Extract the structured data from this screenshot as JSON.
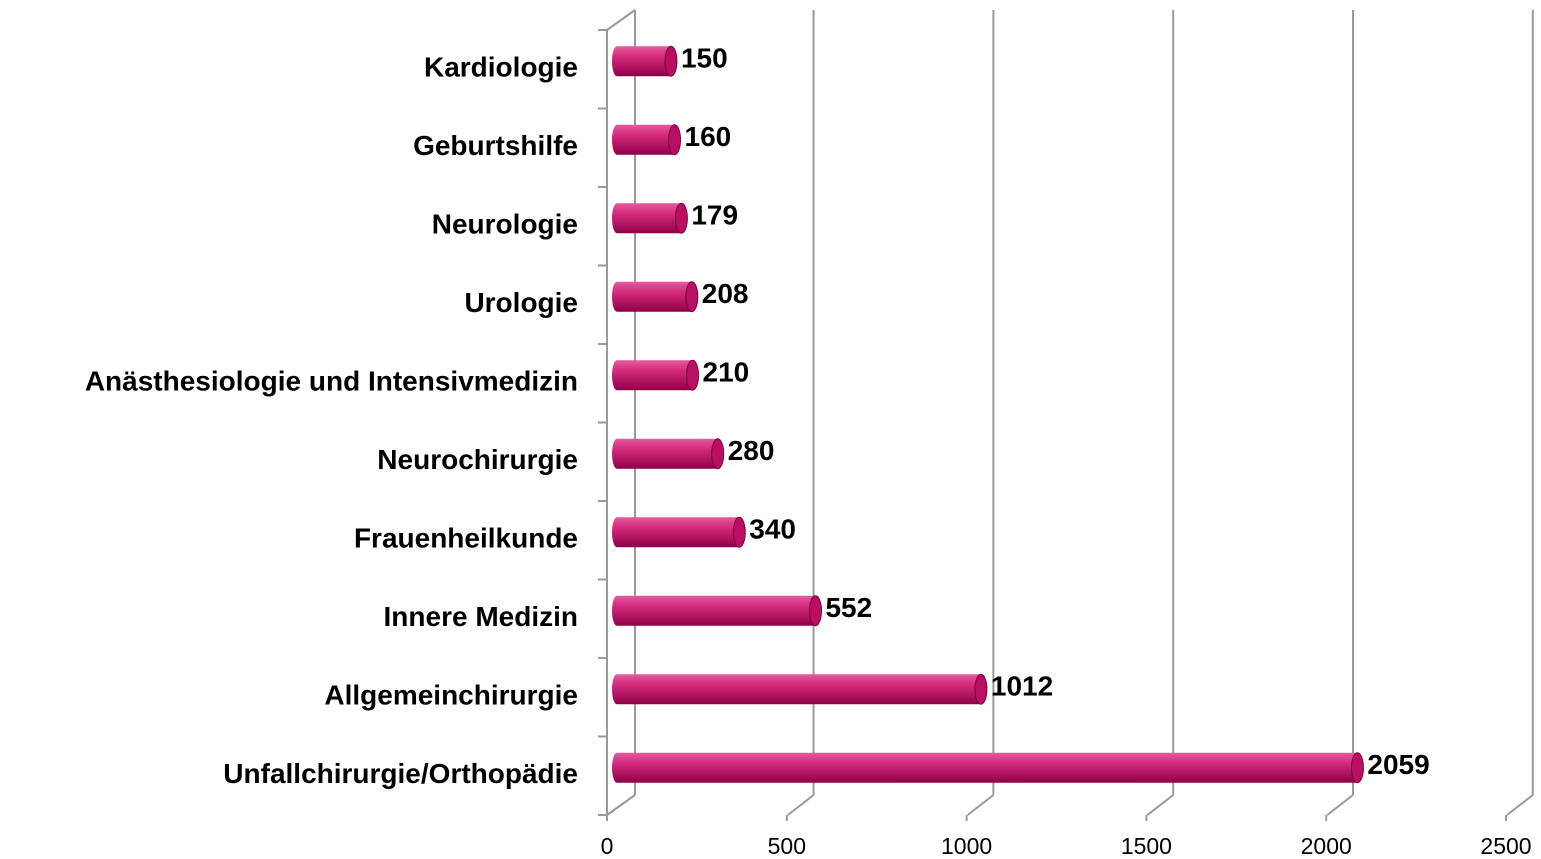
{
  "chart_data": {
    "type": "bar",
    "orientation": "horizontal",
    "categories": [
      "Kardiologie",
      "Geburtshilfe",
      "Neurologie",
      "Urologie",
      "Anästhesiologie und Intensivmedizin",
      "Neurochirurgie",
      "Frauenheilkunde",
      "Innere Medizin",
      "Allgemeinchirurgie",
      "Unfallchirurgie/Orthopädie"
    ],
    "values": [
      150,
      160,
      179,
      208,
      210,
      280,
      340,
      552,
      1012,
      2059
    ],
    "color": "#c2146e",
    "xlim": [
      0,
      2500
    ],
    "xticks": [
      0,
      500,
      1000,
      1500,
      2000,
      2500
    ],
    "grid": true
  }
}
